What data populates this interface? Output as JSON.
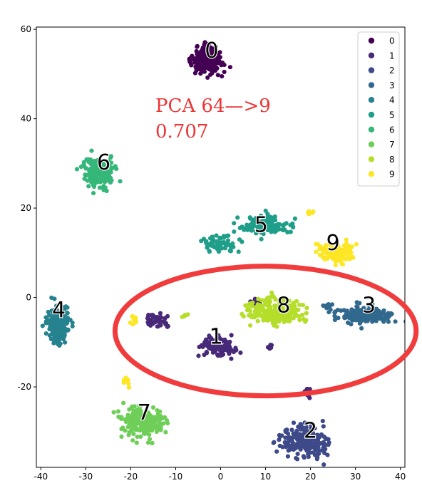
{
  "chart_data": {
    "type": "scatter",
    "title": "",
    "xlabel": "",
    "ylabel": "",
    "xlim": [
      -41,
      41
    ],
    "ylim": [
      -38,
      60.5
    ],
    "xticks": [
      -40,
      -30,
      -20,
      -10,
      0,
      10,
      20,
      30,
      40
    ],
    "yticks": [
      -20,
      0,
      20,
      40,
      60
    ],
    "grid": false,
    "legend_position": "top-right",
    "colormap": "viridis",
    "series": [
      {
        "name": "0",
        "color": "#440154",
        "label_at": [
          -2,
          55
        ],
        "blobs": [
          [
            -3,
            53,
            3.5,
            2.8,
            190
          ]
        ]
      },
      {
        "name": "1",
        "color": "#482878",
        "label_at": [
          -1,
          -9
        ],
        "blobs": [
          [
            -1,
            -11,
            4.0,
            2.0,
            120
          ],
          [
            -14,
            -5,
            2.2,
            1.3,
            50
          ],
          [
            8,
            -1,
            1.2,
            0.8,
            10
          ],
          [
            11,
            -11,
            0.8,
            0.7,
            6
          ],
          [
            19,
            -21,
            1.0,
            1.2,
            14
          ]
        ]
      },
      {
        "name": "2",
        "color": "#3e4989",
        "label_at": [
          20,
          -30
        ],
        "blobs": [
          [
            19,
            -32,
            5.0,
            3.2,
            220
          ]
        ]
      },
      {
        "name": "3",
        "color": "#31688e",
        "label_at": [
          33,
          -2
        ],
        "blobs": [
          [
            32,
            -4,
            5.5,
            1.8,
            200
          ],
          [
            24,
            -2,
            1.2,
            0.6,
            10
          ]
        ]
      },
      {
        "name": "4",
        "color": "#26828e",
        "label_at": [
          -36,
          -3
        ],
        "blobs": [
          [
            -36,
            -6,
            2.6,
            4.2,
            180
          ]
        ]
      },
      {
        "name": "5",
        "color": "#1f9e89",
        "label_at": [
          9,
          16
        ],
        "blobs": [
          [
            10,
            16,
            5.0,
            2.0,
            130
          ],
          [
            0,
            12,
            3.5,
            1.6,
            70
          ]
        ]
      },
      {
        "name": "6",
        "color": "#35b779",
        "label_at": [
          -26,
          30
        ],
        "blobs": [
          [
            -27,
            28,
            3.8,
            3.2,
            150
          ]
        ]
      },
      {
        "name": "7",
        "color": "#6ece58",
        "label_at": [
          -17,
          -26
        ],
        "blobs": [
          [
            -17,
            -28,
            4.5,
            3.3,
            200
          ]
        ]
      },
      {
        "name": "8",
        "color": "#b5de2b",
        "label_at": [
          14,
          -2
        ],
        "blobs": [
          [
            12,
            -3,
            6.0,
            2.8,
            200
          ],
          [
            -8,
            -4,
            0.8,
            0.6,
            5
          ]
        ]
      },
      {
        "name": "9",
        "color": "#fde725",
        "label_at": [
          25,
          12
        ],
        "blobs": [
          [
            26,
            10,
            3.5,
            2.3,
            120
          ],
          [
            -19,
            -5,
            1.0,
            1.0,
            10
          ],
          [
            -21,
            -19,
            0.8,
            1.0,
            8
          ],
          [
            20,
            19,
            0.6,
            0.5,
            5
          ]
        ]
      }
    ],
    "annotations": {
      "title_text": "PCA 64—>9",
      "score_text": "0.707",
      "color": "#ee3333",
      "ellipse": {
        "cx": 10,
        "cy": -7.5,
        "rx": 33.5,
        "ry": 14.5,
        "color": "#f03c3c"
      }
    }
  }
}
